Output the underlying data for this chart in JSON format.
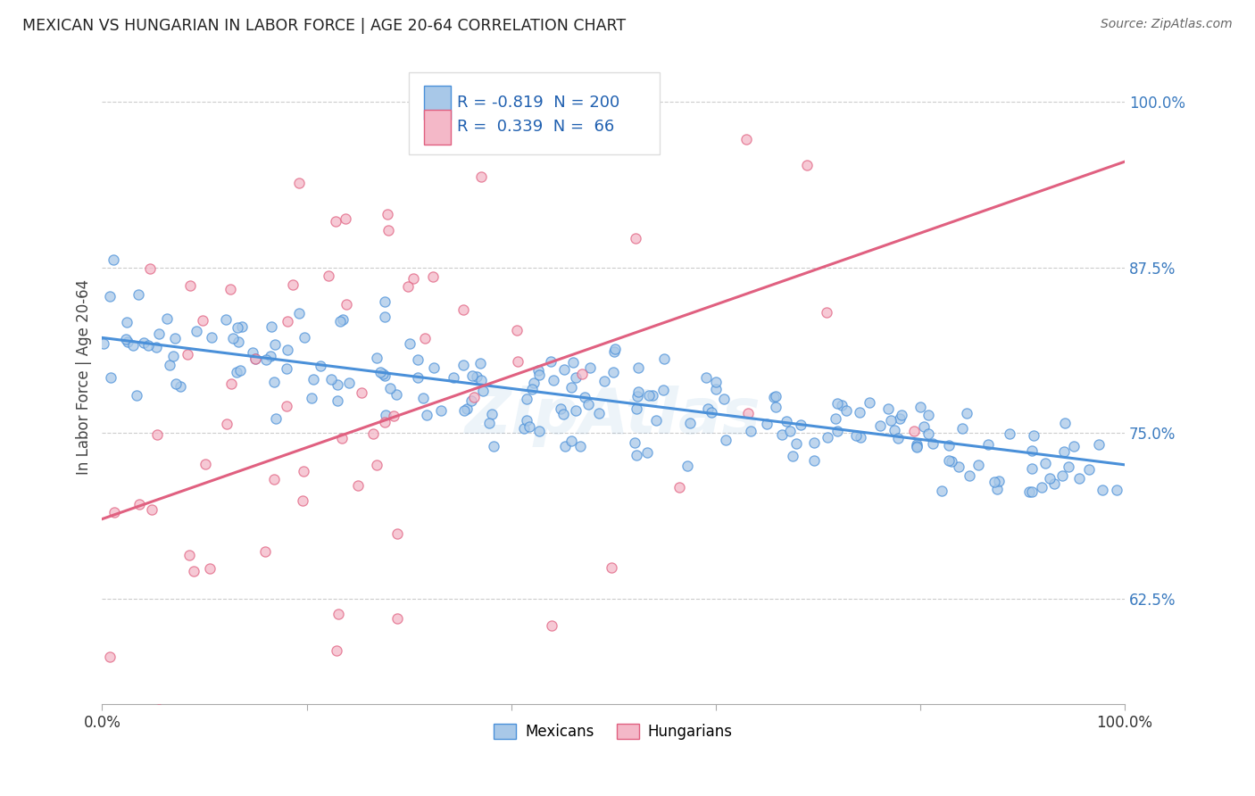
{
  "title": "MEXICAN VS HUNGARIAN IN LABOR FORCE | AGE 20-64 CORRELATION CHART",
  "source": "Source: ZipAtlas.com",
  "ylabel": "In Labor Force | Age 20-64",
  "ytick_labels": [
    "62.5%",
    "75.0%",
    "87.5%",
    "100.0%"
  ],
  "ytick_values": [
    0.625,
    0.75,
    0.875,
    1.0
  ],
  "xlim": [
    0.0,
    1.0
  ],
  "ylim": [
    0.545,
    1.04
  ],
  "blue_color": "#a8c8e8",
  "blue_edge": "#4a90d9",
  "pink_color": "#f4b8c8",
  "pink_edge": "#e06080",
  "blue_R": -0.819,
  "blue_N": 200,
  "pink_R": 0.339,
  "pink_N": 66,
  "watermark": "ZipAtlas",
  "legend_blue_label": "Mexicans",
  "legend_pink_label": "Hungarians",
  "blue_line_start_y": 0.822,
  "blue_line_end_y": 0.726,
  "pink_line_start_y": 0.685,
  "pink_line_end_y": 0.955
}
